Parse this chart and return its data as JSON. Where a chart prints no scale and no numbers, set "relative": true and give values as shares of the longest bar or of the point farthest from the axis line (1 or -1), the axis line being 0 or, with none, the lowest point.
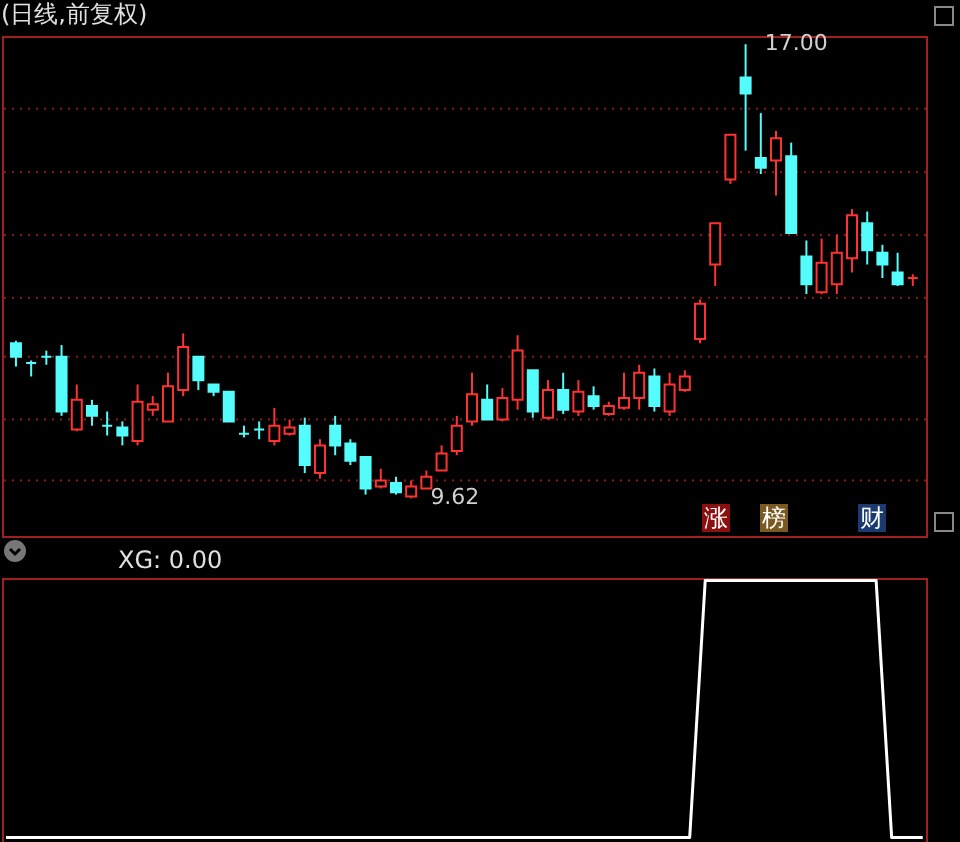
{
  "chart_data": [
    {
      "type": "candlestick",
      "title": "(日线,前复权)",
      "tick_labels": false,
      "grid": "y",
      "yticks": [
        {
          "value": 15.95,
          "label": null
        },
        {
          "value": 14.92,
          "label": null
        },
        {
          "value": 13.9,
          "label": null
        },
        {
          "value": 12.88,
          "label": null
        },
        {
          "value": 11.92,
          "label": null
        },
        {
          "value": 10.9,
          "label": null
        },
        {
          "value": 9.91,
          "label": null
        }
      ],
      "categories": [
        null,
        null,
        null,
        null,
        null,
        null,
        null,
        null,
        null,
        null,
        null,
        null,
        null,
        null,
        null,
        null,
        null,
        null,
        null,
        null,
        null,
        null,
        null,
        null,
        null,
        null,
        null,
        null,
        null,
        null,
        null,
        null,
        null,
        null,
        null,
        null,
        null,
        null,
        null,
        null,
        null,
        null,
        null,
        null,
        null,
        null,
        null,
        null,
        null,
        null,
        null,
        null,
        null,
        null,
        null,
        null,
        null,
        null,
        null,
        null
      ],
      "ohlc": [
        [
          12.14,
          12.18,
          11.76,
          11.92
        ],
        [
          11.82,
          11.86,
          11.6,
          11.82
        ],
        [
          11.92,
          12.02,
          11.79,
          11.92
        ],
        [
          11.92,
          12.11,
          10.96,
          11.03
        ],
        [
          10.74,
          11.47,
          10.71,
          11.22
        ],
        [
          11.12,
          11.22,
          10.8,
          10.96
        ],
        [
          10.8,
          11.03,
          10.64,
          10.8
        ],
        [
          10.77,
          10.87,
          10.48,
          10.64
        ],
        [
          10.55,
          11.47,
          10.48,
          11.19
        ],
        [
          11.06,
          11.28,
          10.96,
          11.15
        ],
        [
          10.87,
          11.66,
          10.87,
          11.44
        ],
        [
          11.38,
          12.3,
          11.28,
          12.08
        ],
        [
          11.92,
          11.92,
          11.38,
          11.54
        ],
        [
          11.47,
          11.47,
          11.28,
          11.35
        ],
        [
          11.35,
          11.35,
          10.87,
          10.87
        ],
        [
          10.67,
          10.8,
          10.61,
          10.67
        ],
        [
          10.74,
          10.87,
          10.58,
          10.74
        ],
        [
          10.55,
          11.09,
          10.48,
          10.8
        ],
        [
          10.67,
          10.9,
          10.64,
          10.77
        ],
        [
          10.8,
          10.93,
          10.03,
          10.16
        ],
        [
          10.03,
          10.58,
          9.94,
          10.48
        ],
        [
          10.8,
          10.96,
          10.32,
          10.48
        ],
        [
          10.51,
          10.58,
          10.16,
          10.23
        ],
        [
          10.29,
          10.29,
          9.68,
          9.78
        ],
        [
          9.81,
          10.1,
          9.78,
          9.91
        ],
        [
          9.87,
          9.97,
          9.68,
          9.72
        ],
        [
          9.65,
          9.91,
          9.62,
          9.81
        ],
        [
          9.78,
          10.07,
          9.78,
          9.97
        ],
        [
          10.07,
          10.48,
          10.07,
          10.35
        ],
        [
          10.39,
          10.96,
          10.32,
          10.8
        ],
        [
          10.87,
          11.66,
          10.8,
          11.31
        ],
        [
          11.22,
          11.47,
          10.9,
          10.9
        ],
        [
          10.9,
          11.41,
          10.87,
          11.25
        ],
        [
          11.22,
          12.27,
          11.06,
          12.02
        ],
        [
          11.7,
          11.7,
          10.93,
          11.03
        ],
        [
          10.93,
          11.54,
          10.9,
          11.38
        ],
        [
          11.38,
          11.66,
          10.99,
          11.06
        ],
        [
          11.03,
          11.54,
          10.96,
          11.35
        ],
        [
          11.28,
          11.44,
          11.06,
          11.12
        ],
        [
          10.99,
          11.19,
          10.96,
          11.12
        ],
        [
          11.09,
          11.66,
          11.06,
          11.25
        ],
        [
          11.25,
          11.79,
          11.06,
          11.66
        ],
        [
          11.6,
          11.73,
          11.03,
          11.12
        ],
        [
          11.03,
          11.66,
          10.96,
          11.47
        ],
        [
          11.38,
          11.7,
          11.35,
          11.6
        ],
        [
          12.21,
          12.85,
          12.14,
          12.78
        ],
        [
          13.42,
          14.09,
          13.07,
          14.09
        ],
        [
          14.8,
          15.53,
          14.73,
          15.53
        ],
        [
          16.46,
          17.0,
          15.27,
          16.2
        ],
        [
          15.15,
          15.88,
          14.89,
          14.99
        ],
        [
          15.11,
          15.59,
          14.54,
          15.47
        ],
        [
          15.18,
          15.4,
          13.93,
          13.93
        ],
        [
          13.55,
          13.81,
          12.94,
          13.1
        ],
        [
          12.97,
          13.84,
          12.94,
          13.45
        ],
        [
          13.1,
          13.9,
          12.94,
          13.61
        ],
        [
          13.52,
          14.32,
          13.29,
          14.22
        ],
        [
          14.09,
          14.28,
          13.42,
          13.65
        ],
        [
          13.61,
          13.74,
          13.2,
          13.42
        ],
        [
          13.29,
          13.61,
          13.07,
          13.1
        ],
        [
          13.2,
          13.26,
          13.07,
          13.2
        ]
      ],
      "colors": [
        "#54fcfc",
        "#54fcfc",
        "#54fcfc",
        "#54fcfc",
        "#ff3232",
        "#54fcfc",
        "#54fcfc",
        "#54fcfc",
        "#ff3232",
        "#ff3232",
        "#ff3232",
        "#ff3232",
        "#54fcfc",
        "#54fcfc",
        "#54fcfc",
        "#54fcfc",
        "#54fcfc",
        "#ff3232",
        "#ff3232",
        "#54fcfc",
        "#ff3232",
        "#54fcfc",
        "#54fcfc",
        "#54fcfc",
        "#ff3232",
        "#54fcfc",
        "#ff3232",
        "#ff3232",
        "#ff3232",
        "#ff3232",
        "#ff3232",
        "#54fcfc",
        "#ff3232",
        "#ff3232",
        "#54fcfc",
        "#ff3232",
        "#54fcfc",
        "#ff3232",
        "#54fcfc",
        "#ff3232",
        "#ff3232",
        "#ff3232",
        "#54fcfc",
        "#ff3232",
        "#ff3232",
        "#ff3232",
        "#ff3232",
        "#ff3232",
        "#54fcfc",
        "#54fcfc",
        "#ff3232",
        "#54fcfc",
        "#54fcfc",
        "#ff3232",
        "#ff3232",
        "#ff3232",
        "#54fcfc",
        "#54fcfc",
        "#54fcfc",
        "#ff3232"
      ],
      "annotations": [
        "17.00",
        "9.62",
        "涨",
        "榜",
        "财"
      ]
    },
    {
      "type": "line",
      "relative": true,
      "title": "XG: 0.00",
      "tick_labels": false,
      "categories": [
        null,
        null,
        null,
        null,
        null,
        null,
        null,
        null,
        null,
        null,
        null,
        null,
        null,
        null,
        null,
        null,
        null,
        null,
        null,
        null,
        null,
        null,
        null,
        null,
        null,
        null,
        null,
        null,
        null,
        null,
        null,
        null,
        null,
        null,
        null,
        null,
        null,
        null,
        null,
        null,
        null,
        null,
        null,
        null,
        null,
        null,
        null,
        null,
        null,
        null,
        null,
        null,
        null,
        null,
        null,
        null,
        null,
        null,
        null,
        null
      ],
      "series": [
        {
          "color": "#ffffff",
          "values": [
            0,
            0,
            0,
            0,
            0,
            0,
            0,
            0,
            0,
            0,
            0,
            0,
            0,
            0,
            0,
            0,
            0,
            0,
            0,
            0,
            0,
            0,
            0,
            0,
            0,
            0,
            0,
            0,
            0,
            0,
            0,
            0,
            0,
            0,
            0,
            0,
            0,
            0,
            0,
            0,
            0,
            0,
            0,
            0,
            0,
            1,
            1,
            1,
            1,
            1,
            1,
            1,
            1,
            1,
            1,
            1,
            1,
            0,
            0,
            0
          ]
        }
      ]
    }
  ]
}
